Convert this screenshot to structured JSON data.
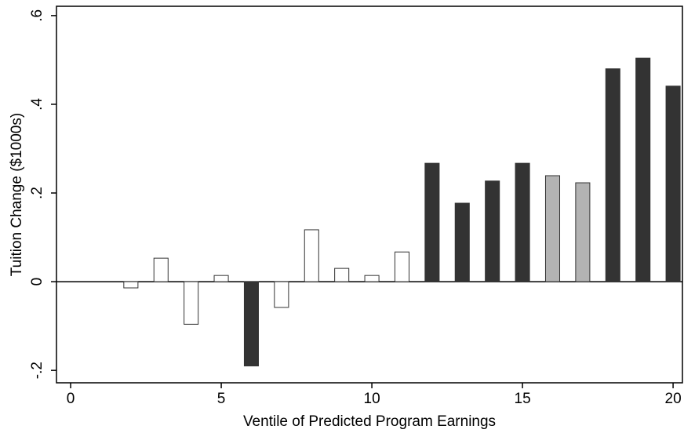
{
  "chart_data": {
    "type": "bar",
    "xlabel": "Ventile of Predicted Program Earnings",
    "ylabel": "Tuition Change ($1000s)",
    "x": [
      2,
      3,
      4,
      5,
      6,
      7,
      8,
      9,
      10,
      11,
      12,
      13,
      14,
      15,
      16,
      17,
      18,
      19,
      20
    ],
    "values": [
      -0.014,
      0.053,
      -0.096,
      0.014,
      -0.19,
      -0.058,
      0.117,
      0.03,
      0.014,
      0.067,
      0.267,
      0.177,
      0.227,
      0.267,
      0.239,
      0.223,
      0.48,
      0.504,
      0.441
    ],
    "colors": [
      "#ffffff",
      "#ffffff",
      "#ffffff",
      "#ffffff",
      "#333333",
      "#ffffff",
      "#ffffff",
      "#ffffff",
      "#ffffff",
      "#ffffff",
      "#333333",
      "#333333",
      "#333333",
      "#333333",
      "#b3b3b3",
      "#b3b3b3",
      "#333333",
      "#333333",
      "#333333"
    ],
    "edgecolor": "#333333",
    "xlim": [
      -0.47,
      20.31
    ],
    "xticks": [
      0,
      5,
      10,
      15,
      20
    ],
    "ylim": [
      -0.228,
      0.621
    ],
    "yticks": [
      {
        "value": -0.2,
        "label": "-.2"
      },
      0,
      {
        "value": 0.2,
        "label": ".2"
      },
      {
        "value": 0.4,
        "label": ".4"
      },
      {
        "value": 0.6,
        "label": ".6"
      }
    ],
    "zero_line": true
  }
}
